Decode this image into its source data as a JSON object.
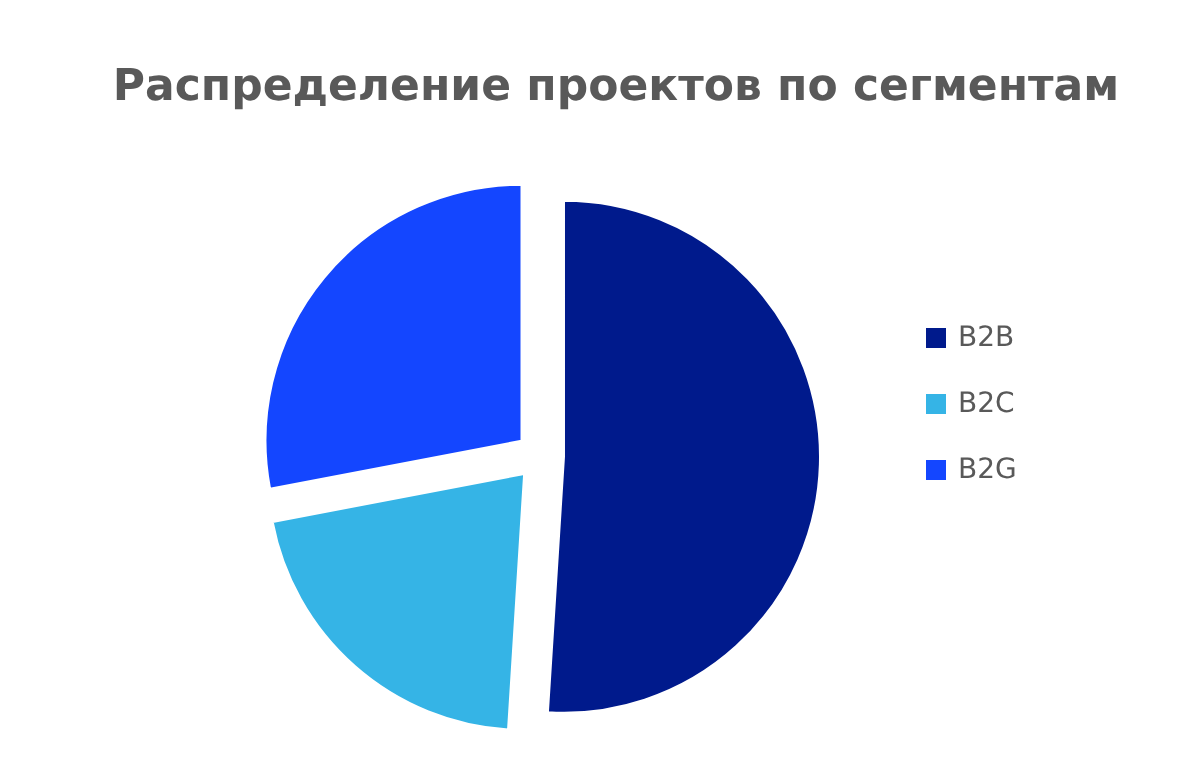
{
  "chart_data": {
    "type": "pie",
    "title": "Распределение проектов по сегментам",
    "categories": [
      "B2B",
      "B2C",
      "B2G"
    ],
    "values": [
      51,
      21,
      28
    ],
    "colors": [
      "#001a8c",
      "#35b4e6",
      "#1446ff"
    ],
    "legend": "right"
  }
}
